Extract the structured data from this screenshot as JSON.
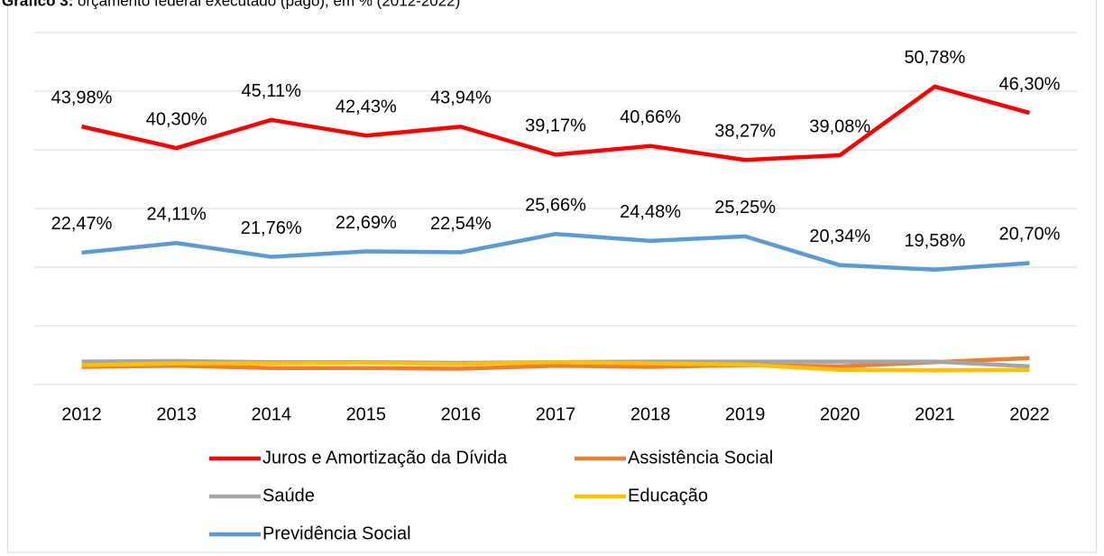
{
  "chart_data": {
    "type": "line",
    "title_label": "Gráfico 3:",
    "title": "orçamento federal executado (pago), em % (2012-2022)",
    "categories": [
      "2012",
      "2013",
      "2014",
      "2015",
      "2016",
      "2017",
      "2018",
      "2019",
      "2020",
      "2021",
      "2022"
    ],
    "ylim": [
      0,
      60
    ],
    "yticks": [
      0,
      10,
      20,
      30,
      40,
      50,
      60
    ],
    "grid": true,
    "legend": "bottom",
    "series": [
      {
        "name": "Juros e Amortização da Dívida",
        "color": "#ff0000",
        "values": [
          43.98,
          40.3,
          45.11,
          42.43,
          43.94,
          39.17,
          40.66,
          38.27,
          39.08,
          50.78,
          46.3
        ],
        "value_labels": [
          "43,98%",
          "40,30%",
          "45,11%",
          "42,43%",
          "43,94%",
          "39,17%",
          "40,66%",
          "38,27%",
          "39,08%",
          "50,78%",
          "46,30%"
        ]
      },
      {
        "name": "Assistência Social",
        "color": "#ed7d31",
        "values": [
          3.0,
          3.2,
          2.8,
          2.8,
          2.7,
          3.2,
          3.0,
          3.3,
          3.1,
          3.8,
          4.5
        ]
      },
      {
        "name": "Saúde",
        "color": "#a5a5a5",
        "values": [
          3.9,
          4.0,
          3.8,
          3.8,
          3.7,
          3.8,
          3.9,
          3.9,
          3.9,
          3.9,
          3.1
        ]
      },
      {
        "name": "Educação",
        "color": "#ffc000",
        "values": [
          3.3,
          3.6,
          3.6,
          3.7,
          3.5,
          3.8,
          3.6,
          3.4,
          2.5,
          2.4,
          2.5
        ]
      },
      {
        "name": "Previdência Social",
        "color": "#5b9bd5",
        "values": [
          22.47,
          24.11,
          21.76,
          22.69,
          22.54,
          25.66,
          24.48,
          25.25,
          20.34,
          19.58,
          20.7
        ],
        "value_labels": [
          "22,47%",
          "24,11%",
          "21,76%",
          "22,69%",
          "22,54%",
          "25,66%",
          "24,48%",
          "25,25%",
          "20,34%",
          "19,58%",
          "20,70%"
        ]
      }
    ]
  }
}
